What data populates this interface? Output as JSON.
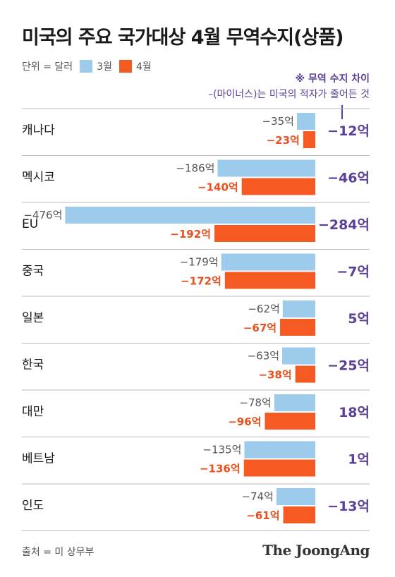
{
  "title": "미국의 주요 국가대상 4월 무역수지(상품)",
  "unit_label": "단위 = 달러",
  "note": {
    "title": "※ 무역 수지 차이",
    "text": "–(마이너스)는 미국의 적자가 줄어든 것"
  },
  "source": "출처 = 미 상무부",
  "logo": "The JoongAng",
  "colors": {
    "march": "#9dcbec",
    "april": "#f55a22",
    "diff": "#5b3f99",
    "divider": "#b8b8b8",
    "label_april": "#e8501e",
    "label_march": "#555555"
  },
  "chart_data": {
    "type": "bar",
    "orientation": "horizontal",
    "title": "미국의 주요 국가대상 4월 무역수지(상품)",
    "unit": "단위 = 달러",
    "categories": [
      "캐나다",
      "멕시코",
      "EU",
      "중국",
      "일본",
      "한국",
      "대만",
      "베트남",
      "인도"
    ],
    "series": [
      {
        "name": "3월",
        "values": [
          -35,
          -186,
          -476,
          -179,
          -62,
          -63,
          -78,
          -135,
          -74
        ],
        "labels": [
          "−35억",
          "−186억",
          "−476억",
          "−179억",
          "−62억",
          "−63억",
          "−78억",
          "−135억",
          "−74억"
        ]
      },
      {
        "name": "4월",
        "values": [
          -23,
          -140,
          -192,
          -172,
          -67,
          -38,
          -96,
          -136,
          -61
        ],
        "labels": [
          "−23억",
          "−140억",
          "−192억",
          "−172억",
          "−67억",
          "−38억",
          "−96억",
          "−136억",
          "−61억"
        ]
      }
    ],
    "differences": {
      "name": "무역 수지 차이",
      "values": [
        -12,
        -46,
        -284,
        -7,
        5,
        -25,
        18,
        1,
        -13
      ],
      "labels": [
        "−12억",
        "−46억",
        "−284억",
        "−7억",
        "5억",
        "−25억",
        "18억",
        "1억",
        "−13억"
      ]
    },
    "value_unit": "억 달러",
    "grid": false,
    "legend": "top-left"
  }
}
